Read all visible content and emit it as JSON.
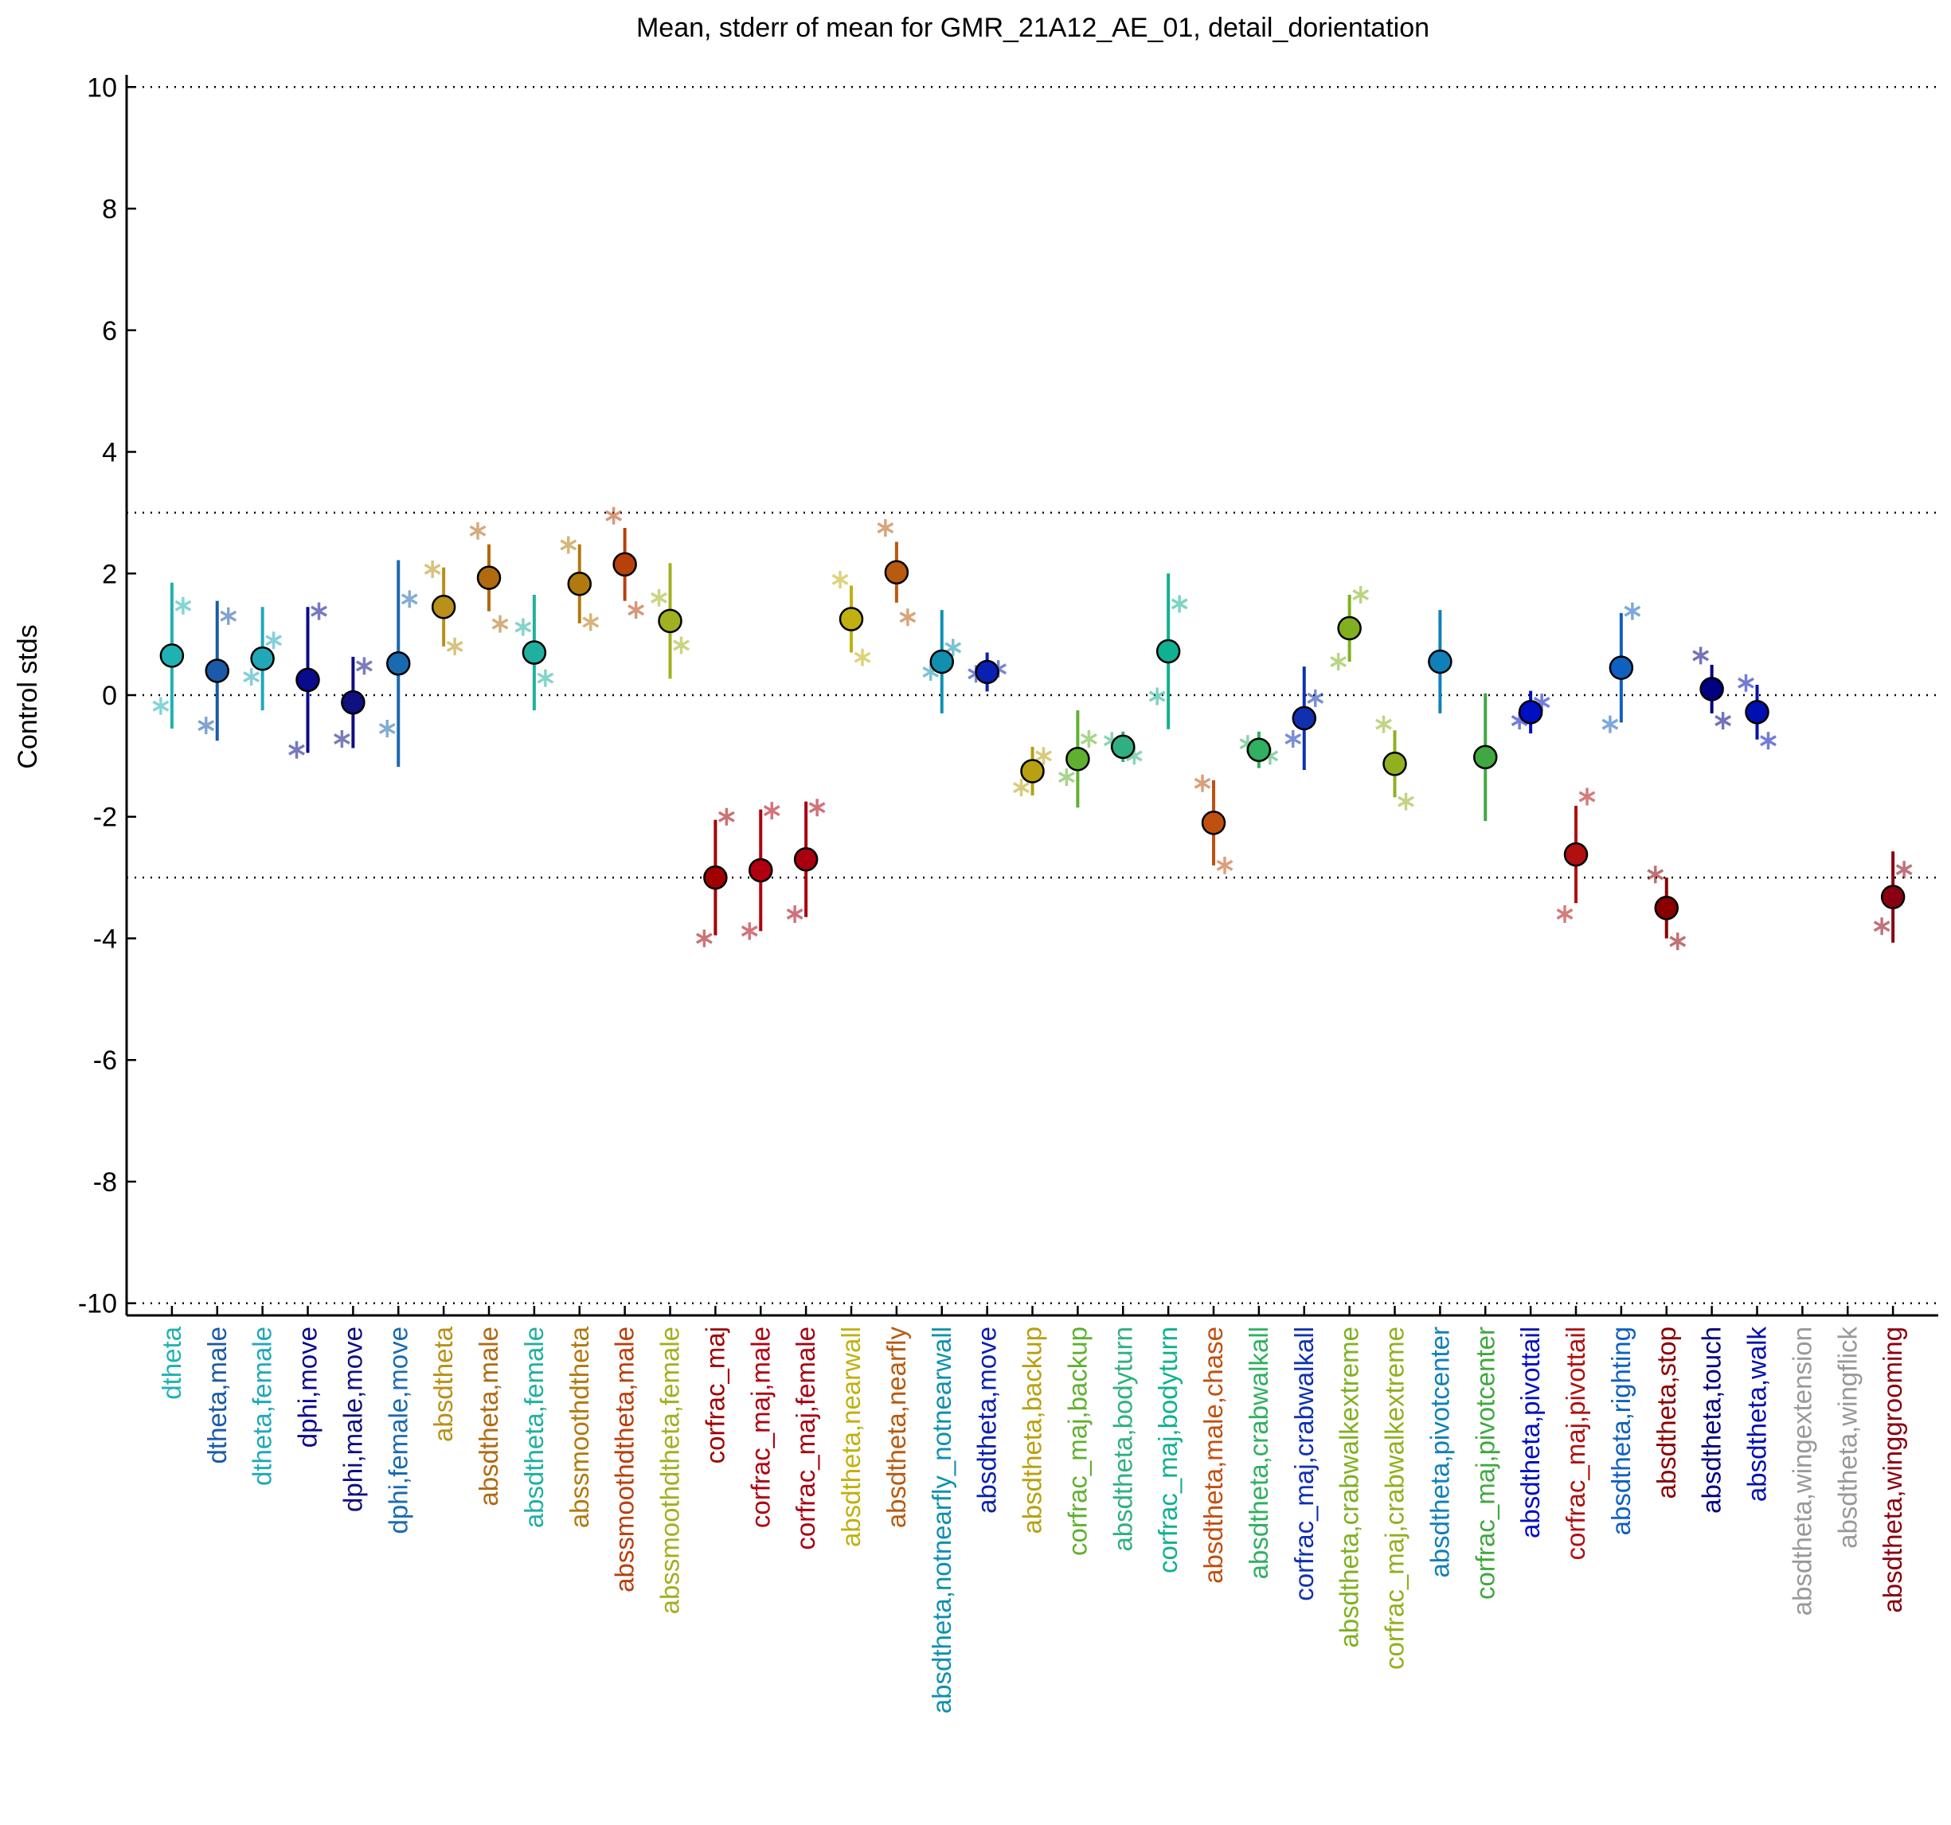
{
  "chart_data": {
    "type": "errorbar",
    "title": "Mean, stderr of mean for GMR_21A12_AE_01, detail_dorientation",
    "y_label": "Control stds",
    "categories": [
      "dtheta",
      "dtheta,male",
      "dtheta,female",
      "dphi,move",
      "dphi,male,move",
      "dphi,female,move",
      "absdtheta",
      "absdtheta,male",
      "absdtheta,female",
      "abssmoothdtheta",
      "abssmoothdtheta,male",
      "abssmoothdtheta,female",
      "corfrac_maj",
      "corfrac_maj,male",
      "corfrac_maj,female",
      "absdtheta,nearwall",
      "absdtheta,nearfly",
      "absdtheta,notnearfly_notnearwall",
      "absdtheta,move",
      "absdtheta,backup",
      "corfrac_maj,backup",
      "absdtheta,bodyturn",
      "corfrac_maj,bodyturn",
      "absdtheta,male,chase",
      "absdtheta,crabwalkall",
      "corfrac_maj,crabwalkall",
      "absdtheta,crabwalkextreme",
      "corfrac_maj,crabwalkextreme",
      "absdtheta,pivotcenter",
      "corfrac_maj,pivotcenter",
      "absdtheta,pivottail",
      "corfrac_maj,pivottail",
      "absdtheta,righting",
      "absdtheta,stop",
      "absdtheta,touch",
      "absdtheta,walk",
      "absdtheta,wingextension",
      "absdtheta,wingflick",
      "absdtheta,winggrooming"
    ],
    "colors": [
      "#20b2b2",
      "#1a5aa8",
      "#20a8b8",
      "#0a0a8c",
      "#101080",
      "#1a6ab0",
      "#b8901a",
      "#b06a10",
      "#20b0a0",
      "#b07a10",
      "#b8400c",
      "#a0b020",
      "#a00000",
      "#b00010",
      "#a80010",
      "#c0b010",
      "#b85a10",
      "#1090b0",
      "#0a20b0",
      "#b8a010",
      "#60b030",
      "#30b080",
      "#10b090",
      "#c05010",
      "#30b060",
      "#1030b0",
      "#80b020",
      "#90b020",
      "#1080b8",
      "#40a840",
      "#0010c0",
      "#b01010",
      "#1060c0",
      "#8a0000",
      "#000080",
      "#0010b0",
      "#999999",
      "#999999",
      "#8a0010"
    ],
    "series": [
      {
        "values": [
          0.65,
          0.4,
          0.6,
          0.25,
          -0.12,
          0.52,
          1.45,
          1.93,
          0.7,
          1.83,
          2.15,
          1.22,
          -3.0,
          -2.88,
          -2.7,
          1.25,
          2.02,
          0.55,
          0.38,
          -1.25,
          -1.05,
          -0.85,
          0.72,
          -2.1,
          -0.9,
          -0.38,
          1.1,
          -1.13,
          0.55,
          -1.02,
          -0.28,
          -2.62,
          0.45,
          -3.5,
          0.1,
          -0.28,
          null,
          null,
          -3.32
        ],
        "errors": [
          1.2,
          1.15,
          0.85,
          1.2,
          0.75,
          1.7,
          0.65,
          0.55,
          0.95,
          0.65,
          0.6,
          0.95,
          0.95,
          1.0,
          0.95,
          0.55,
          0.5,
          0.85,
          0.32,
          0.4,
          0.8,
          0.25,
          1.28,
          0.7,
          0.3,
          0.85,
          0.55,
          0.55,
          0.85,
          1.05,
          0.35,
          0.8,
          0.9,
          0.5,
          0.4,
          0.45,
          null,
          null,
          0.75
        ]
      },
      {
        "values": [
          -0.18,
          -0.5,
          0.3,
          -0.9,
          -0.72,
          -0.55,
          2.07,
          2.7,
          1.12,
          2.47,
          2.95,
          1.6,
          -4.0,
          -3.88,
          -3.6,
          1.9,
          2.75,
          0.38,
          0.35,
          -1.52,
          -1.35,
          -0.75,
          -0.02,
          -1.45,
          -0.8,
          -0.72,
          0.55,
          -0.48,
          null,
          null,
          -0.42,
          -3.6,
          -0.48,
          -2.95,
          0.65,
          0.2,
          null,
          null,
          -3.8
        ]
      },
      {
        "values": [
          1.47,
          1.3,
          0.9,
          1.38,
          0.48,
          1.58,
          0.8,
          1.17,
          0.28,
          1.2,
          1.4,
          0.82,
          -2.0,
          -1.9,
          -1.85,
          0.62,
          1.28,
          0.78,
          0.43,
          -1.0,
          -0.72,
          -1.0,
          1.5,
          -2.8,
          -1.0,
          -0.05,
          1.65,
          -1.75,
          null,
          null,
          -0.12,
          -1.67,
          1.38,
          -4.05,
          -0.42,
          -0.75,
          null,
          null,
          -2.87
        ]
      }
    ],
    "xlim": [
      -1,
      39
    ],
    "ylim": [
      -10.2,
      10.2
    ],
    "yticks": [
      -10,
      -8,
      -6,
      -4,
      -2,
      0,
      2,
      4,
      6,
      8,
      10
    ],
    "reference_lines": [
      10,
      3,
      0,
      -3,
      -10
    ]
  }
}
